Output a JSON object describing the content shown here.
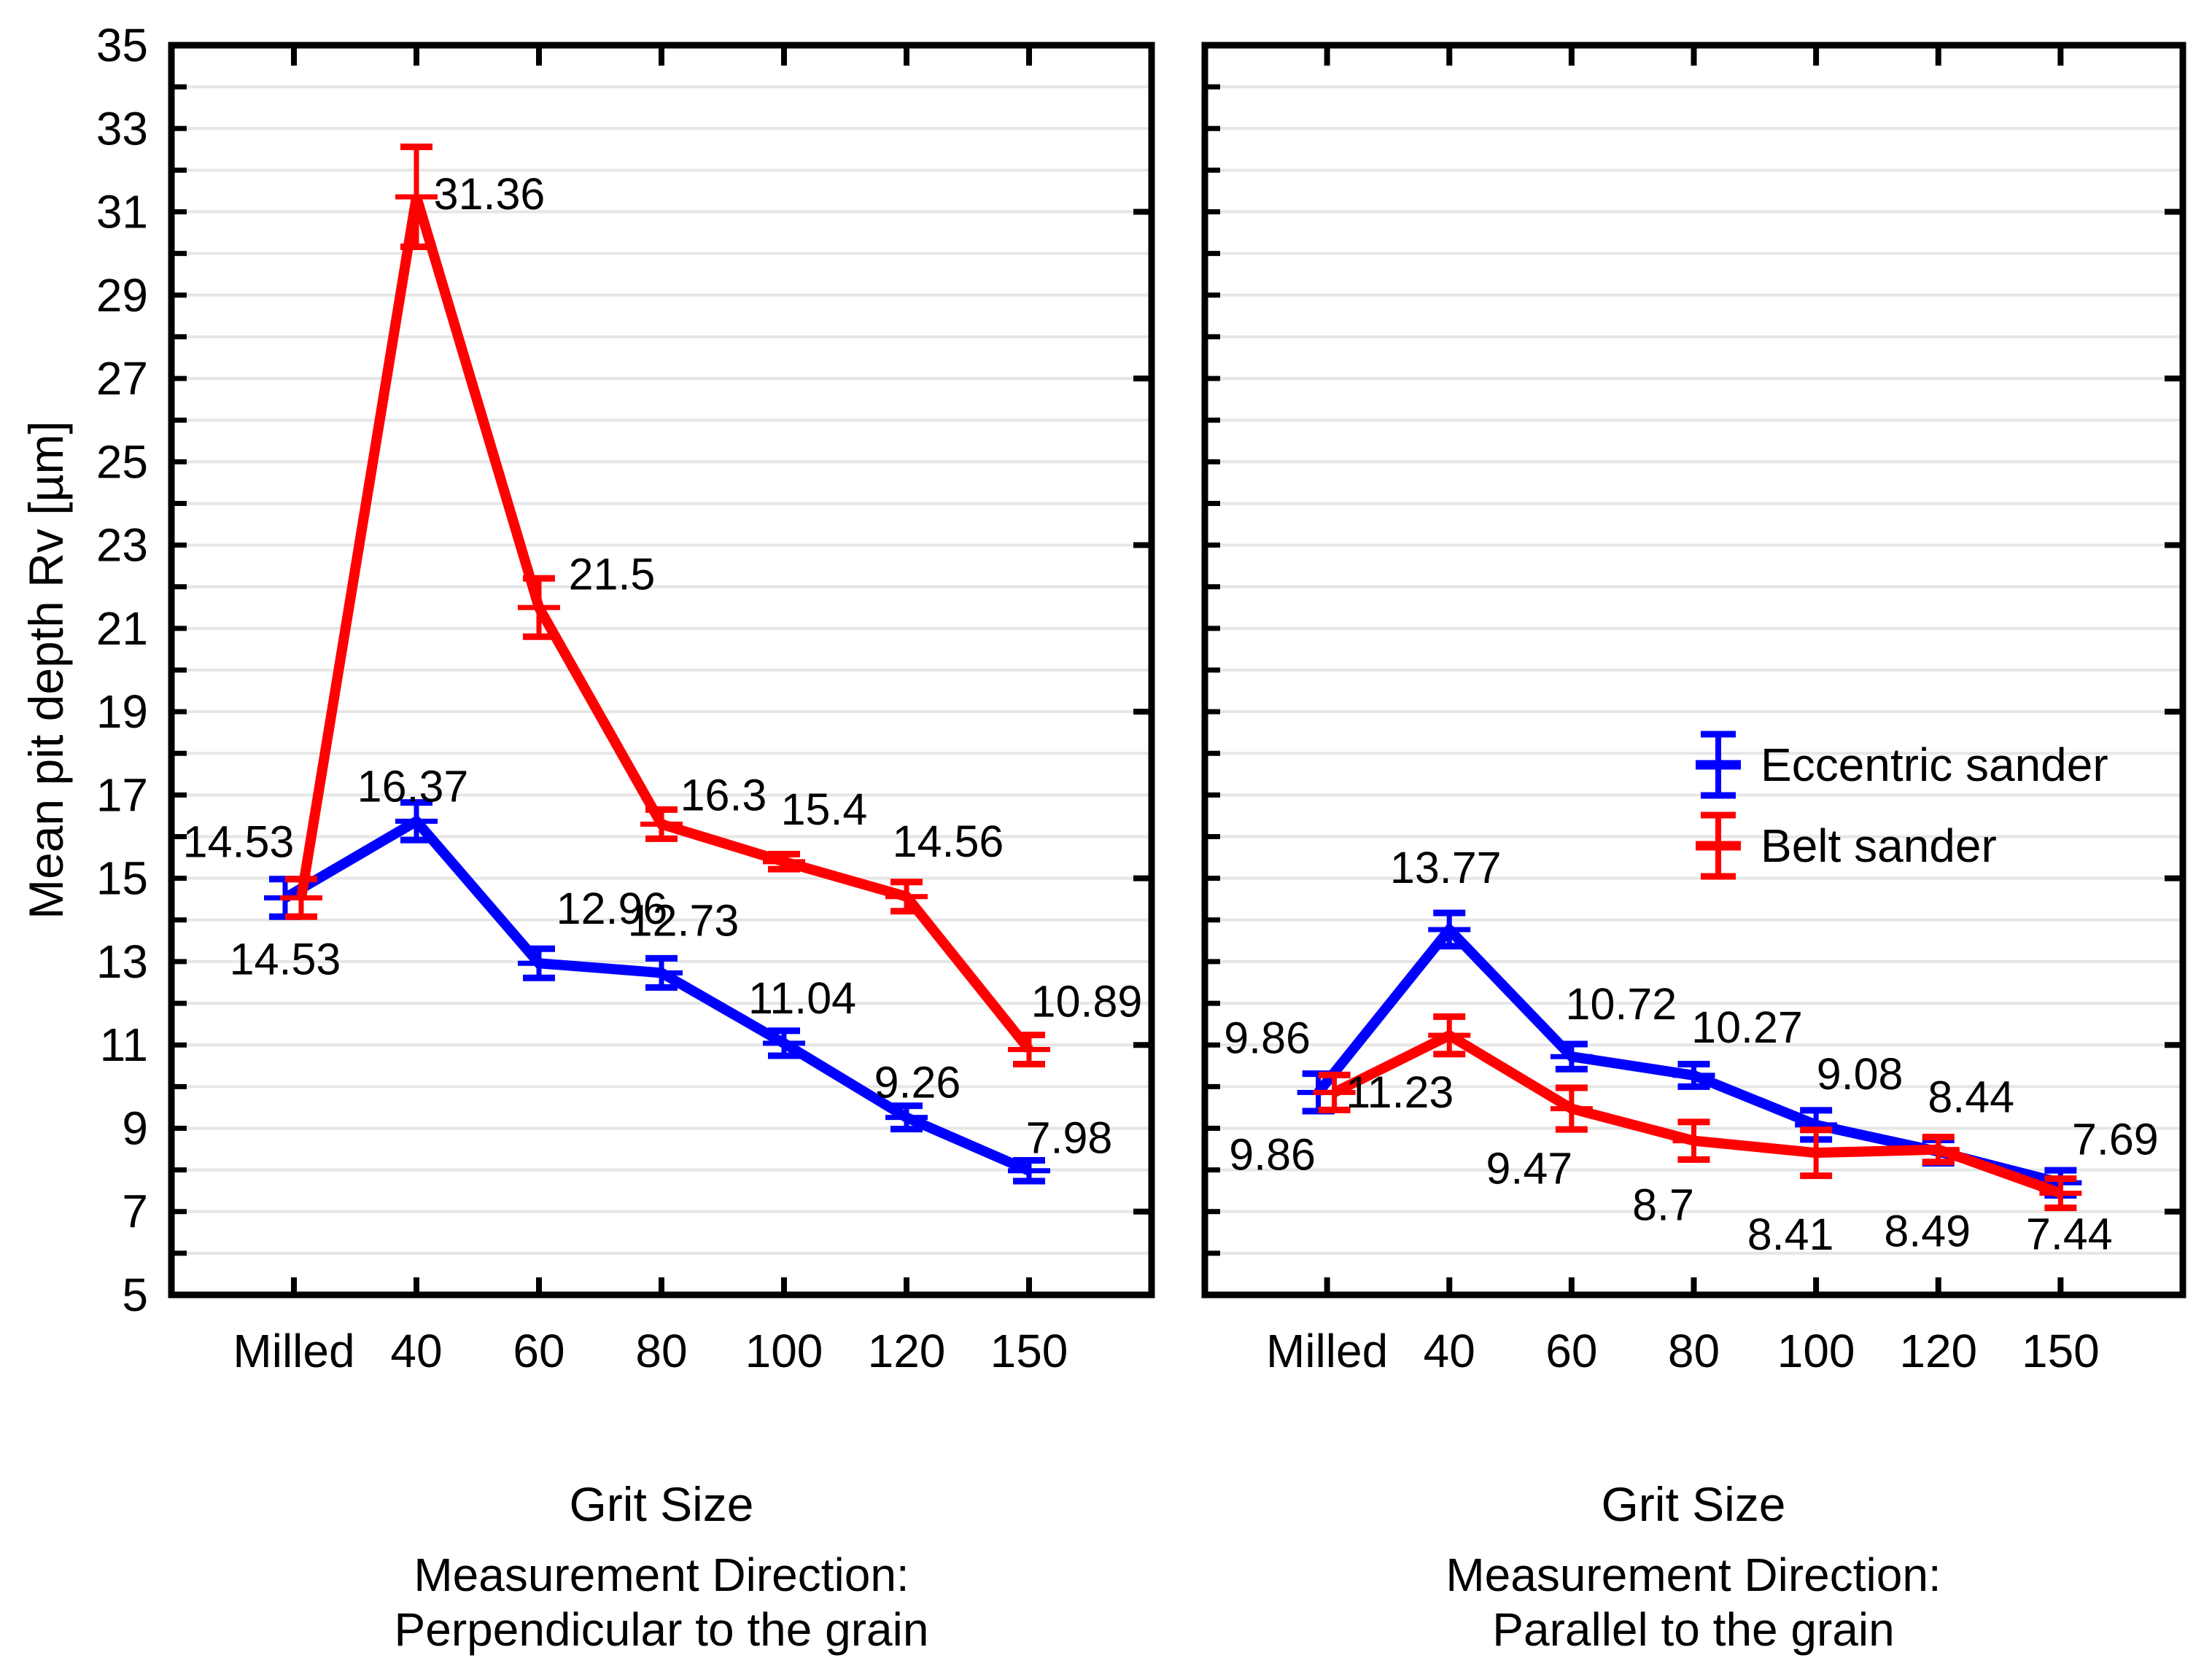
{
  "figure": {
    "y_axis_title": "Mean pit depth Rv [µm]",
    "y_tick_labels": [
      "35",
      "33",
      "31",
      "29",
      "27",
      "25",
      "23",
      "21",
      "19",
      "17",
      "15",
      "13",
      "11",
      "9",
      "7",
      "5"
    ],
    "legend": {
      "position": "inside top area of right panel",
      "items": [
        {
          "label": "Eccentric sander",
          "color": "#0000ff"
        },
        {
          "label": "Belt sander",
          "color": "#ff0000"
        }
      ]
    },
    "colors": {
      "eccentric_sander": "#0000ff",
      "belt_sander": "#ff0000",
      "gridline": "#e6e6e6",
      "axis": "#000000",
      "background": "#ffffff"
    }
  },
  "chart_data": [
    {
      "type": "line",
      "panel": "left",
      "xlabel": "Grit Size",
      "ylabel": "Mean pit depth Rv [µm]",
      "caption_line1": "Measurement Direction:",
      "caption_line2": "Perpendicular to the grain",
      "categories": [
        "Milled",
        "40",
        "60",
        "80",
        "100",
        "120",
        "150"
      ],
      "ylim": [
        5,
        35
      ],
      "ytick_interval": 2,
      "grid": {
        "horizontal": true,
        "interval": 1
      },
      "show_y_tick_labels": true,
      "y_ticks": [
        35,
        33,
        31,
        29,
        27,
        25,
        23,
        21,
        19,
        17,
        15,
        13,
        11,
        9,
        7,
        5
      ],
      "right_axis_tick_values": [
        31,
        27,
        23,
        19,
        15,
        11,
        7
      ],
      "series": [
        {
          "name": "Eccentric sander",
          "color": "#0000ff",
          "values": [
            14.53,
            16.37,
            12.96,
            12.73,
            11.04,
            9.26,
            7.98
          ],
          "errors": [
            0.45,
            0.45,
            0.35,
            0.35,
            0.3,
            0.28,
            0.25
          ],
          "labels": [
            "14.53",
            "16.37",
            "12.96",
            "12.73",
            "11.04",
            "9.26",
            "7.98"
          ],
          "label_offsets": [
            [
              0,
              84
            ],
            [
              -5,
              -48
            ],
            [
              100,
              -75
            ],
            [
              30,
              -72
            ],
            [
              25,
              -62
            ],
            [
              15,
              -48
            ],
            [
              55,
              -45
            ]
          ],
          "point_x_offsets": [
            -12,
            0,
            0,
            0,
            0,
            0,
            0
          ]
        },
        {
          "name": "Belt sander",
          "color": "#ff0000",
          "values": [
            14.53,
            31.36,
            21.5,
            16.3,
            15.4,
            14.56,
            10.89
          ],
          "errors": [
            0.45,
            1.2,
            0.7,
            0.35,
            0.18,
            0.35,
            0.35
          ],
          "labels": [
            "14.53",
            "31.36",
            "21.5",
            "16.3",
            "15.4",
            "14.56",
            "10.89"
          ],
          "label_offsets": [
            [
              -86,
              -77
            ],
            [
              100,
              -4
            ],
            [
              100,
              -46
            ],
            [
              85,
              -40
            ],
            [
              55,
              -72
            ],
            [
              57,
              -76
            ],
            [
              79,
              -66
            ]
          ],
          "point_x_offsets": [
            10,
            0,
            0,
            0,
            0,
            0,
            0
          ]
        }
      ]
    },
    {
      "type": "line",
      "panel": "right",
      "xlabel": "Grit Size",
      "ylabel": "Mean pit depth Rv [µm]",
      "caption_line1": "Measurement Direction:",
      "caption_line2": "Parallel to the grain",
      "categories": [
        "Milled",
        "40",
        "60",
        "80",
        "100",
        "120",
        "150"
      ],
      "ylim": [
        5,
        35
      ],
      "ytick_interval": 2,
      "grid": {
        "horizontal": true,
        "interval": 1
      },
      "show_y_tick_labels": false,
      "right_axis_tick_values": [
        31,
        27,
        23,
        19,
        15,
        11,
        7
      ],
      "legend_position": "inside-upper-middle",
      "series": [
        {
          "name": "Eccentric sander",
          "color": "#0000ff",
          "values": [
            9.86,
            13.77,
            10.72,
            10.27,
            9.08,
            8.44,
            7.69
          ],
          "errors": [
            0.45,
            0.4,
            0.3,
            0.27,
            0.35,
            0.28,
            0.3
          ],
          "labels": [
            "9.86",
            "13.77",
            "10.72",
            "10.27",
            "9.08",
            "8.44",
            "7.69"
          ],
          "label_offsets": [
            [
              -70,
              -75
            ],
            [
              -5,
              -85
            ],
            [
              68,
              -72
            ],
            [
              73,
              -66
            ],
            [
              60,
              -70
            ],
            [
              45,
              -75
            ],
            [
              75,
              -60
            ]
          ],
          "point_x_offsets": [
            -12,
            0,
            0,
            0,
            0,
            0,
            0
          ]
        },
        {
          "name": "Belt sander",
          "color": "#ff0000",
          "values": [
            9.86,
            11.23,
            9.47,
            8.7,
            8.41,
            8.49,
            7.44
          ],
          "errors": [
            0.42,
            0.45,
            0.5,
            0.45,
            0.55,
            0.3,
            0.35
          ],
          "labels": [
            "9.86",
            "11.23",
            "9.47",
            "8.7",
            "8.41",
            "8.49",
            "7.44"
          ],
          "label_offsets": [
            [
              -85,
              85
            ],
            [
              -68,
              78
            ],
            [
              -58,
              82
            ],
            [
              -42,
              88
            ],
            [
              -35,
              112
            ],
            [
              -15,
              112
            ],
            [
              12,
              56
            ]
          ],
          "point_x_offsets": [
            10,
            0,
            0,
            0,
            0,
            0,
            0
          ]
        }
      ]
    }
  ]
}
